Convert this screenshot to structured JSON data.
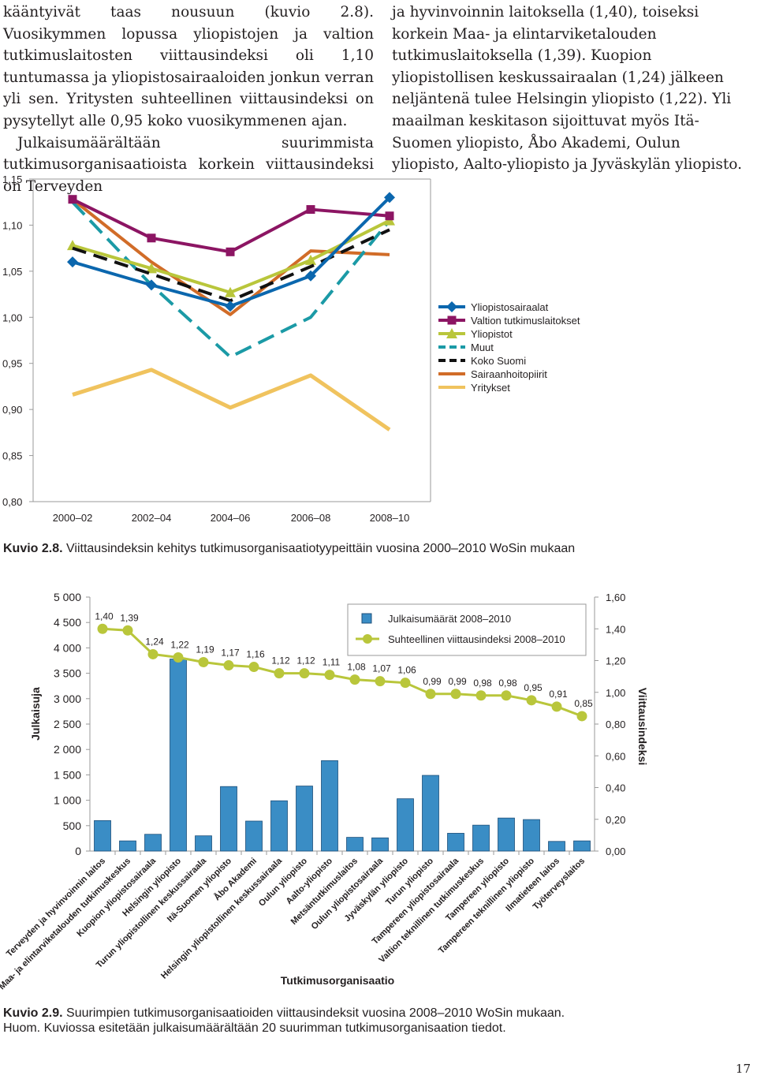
{
  "text": {
    "left_col": {
      "p1": "kääntyivät taas nousuun (kuvio 2.8). Vuosikymmen lopussa yliopistojen ja valtion tutkimuslaitosten viittausindeksi oli 1,10 tuntumassa ja yliopistosairaaloiden jonkun verran yli sen. Yritysten suhteellinen viittausindeksi on pysytellyt alle 0,95 koko vuosikymmenen ajan.",
      "p2": "Julkaisumäärältään suurimmista tutkimusorganisaatioista korkein viittausindeksi on Terveyden"
    },
    "right_col": {
      "p1": "ja hyvinvoinnin laitoksella (1,40), toiseksi korkein Maa- ja elintarviketalouden tutkimuslaitoksella (1,39). Kuopion yliopistollisen keskussairaalan (1,24) jälkeen neljäntenä tulee Helsingin yliopisto (1,22). Yli maailman keskitason sijoittuvat myös Itä-Suomen yliopisto, Åbo Akademi, Oulun yliopisto, Aalto-yliopisto ja Jyväskylän yliopisto."
    }
  },
  "caption1": {
    "label": "Kuvio 2.8.",
    "text": " Viittausindeksin kehitys tutkimusorganisaatiotyypeittäin vuosina 2000–2010 WoSin mukaan"
  },
  "caption2": {
    "label": "Kuvio 2.9.",
    "text": " Suurimpien tutkimusorganisaatioiden viittausindeksit vuosina 2008–2010 WoSin mukaan.",
    "note": "Huom. Kuviossa esitetään julkaisumäärältään 20 suurimman tutkimusorganisaation tiedot."
  },
  "page_number": "17",
  "chart_data": [
    {
      "type": "line",
      "title": "",
      "categories": [
        "2000–02",
        "2002–04",
        "2004–06",
        "2006–08",
        "2008–10"
      ],
      "ylim": [
        0.8,
        1.15
      ],
      "y_ticks": [
        "0,80",
        "0,85",
        "0,90",
        "0,95",
        "1,00",
        "1,05",
        "1,10",
        "1,15"
      ],
      "tick_values": [
        0.8,
        0.85,
        0.9,
        0.95,
        1.0,
        1.05,
        1.1,
        1.15
      ],
      "series": [
        {
          "name": "Yliopistosairaalat",
          "color": "#0b67ae",
          "marker": "diamond",
          "dash": "solid",
          "values": [
            1.06,
            1.035,
            1.012,
            1.045,
            1.13
          ]
        },
        {
          "name": "Valtion tutkimuslaitokset",
          "color": "#8c1563",
          "marker": "square",
          "dash": "solid",
          "values": [
            1.128,
            1.086,
            1.071,
            1.117,
            1.11
          ]
        },
        {
          "name": "Yliopistot",
          "color": "#b9c63b",
          "marker": "triangle",
          "dash": "solid",
          "values": [
            1.078,
            1.053,
            1.027,
            1.062,
            1.105
          ]
        },
        {
          "name": "Muut",
          "color": "#1b9aa6",
          "marker": "none",
          "dash": "dashed",
          "values": [
            1.125,
            1.035,
            0.957,
            1.0,
            1.105
          ]
        },
        {
          "name": "Koko Suomi",
          "color": "#111111",
          "marker": "none",
          "dash": "dashed",
          "values": [
            1.075,
            1.047,
            1.018,
            1.055,
            1.095
          ]
        },
        {
          "name": "Sairaanhoitopiirit",
          "color": "#d16c28",
          "marker": "none",
          "dash": "solid",
          "values": [
            1.128,
            1.06,
            1.003,
            1.072,
            1.068
          ]
        },
        {
          "name": "Yritykset",
          "color": "#f0c35e",
          "marker": "none",
          "dash": "solid",
          "values": [
            0.916,
            0.943,
            0.902,
            0.937,
            0.878
          ]
        }
      ]
    },
    {
      "type": "bar",
      "title": "",
      "xlabel": "Tutkimusorganisaatio",
      "ylabel": "Julkaisuja",
      "y2label": "Viittausindeksi",
      "ylim": [
        0,
        5000
      ],
      "y2lim": [
        0,
        1.6
      ],
      "y_ticks": [
        "0",
        "500",
        "1 000",
        "1 500",
        "2 000",
        "2 500",
        "3 000",
        "3 500",
        "4 000",
        "4 500",
        "5 000"
      ],
      "y2_ticks": [
        "0,00",
        "0,20",
        "0,40",
        "0,60",
        "0,80",
        "1,00",
        "1,20",
        "1,40",
        "1,60"
      ],
      "legend": {
        "bars": "Julkaisumäärät 2008–2010",
        "line": "Suhteellinen viittausindeksi 2008–2010"
      },
      "categories": [
        "Terveyden ja hyvinvoinnin laitos",
        "Maa- ja elintarviketalouden tutkimuskeskus",
        "Kuopion yliopistosairaala",
        "Helsingin yliopisto",
        "Turun yliopistollinen keskussairaala",
        "Itä-Suomen yliopisto",
        "Åbo Akademi",
        "Helsingin yliopistollinen keskussairaala",
        "Oulun yliopisto",
        "Aalto-yliopisto",
        "Metsäntutkimuslaitos",
        "Oulun yliopistosairaala",
        "Jyväskylän yliopisto",
        "Turun yliopisto",
        "Tampereen yliopistosairaala",
        "Valtion teknillinen tutkimuskeskus",
        "Tampereen yliopisto",
        "Tampereen teknillinen yliopisto",
        "Ilmatieteen laitos",
        "Työterveyslaitos"
      ],
      "bar_values": [
        600,
        200,
        330,
        3780,
        300,
        1270,
        590,
        990,
        1280,
        1780,
        270,
        260,
        1030,
        1490,
        350,
        510,
        650,
        620,
        190,
        200
      ],
      "line_values": [
        1.4,
        1.39,
        1.24,
        1.22,
        1.19,
        1.17,
        1.16,
        1.12,
        1.12,
        1.11,
        1.08,
        1.07,
        1.06,
        0.99,
        0.99,
        0.98,
        0.98,
        0.95,
        0.91,
        0.85
      ],
      "line_labels": [
        "1,40",
        "1,39",
        "1,24",
        "1,22",
        "1,19",
        "1,17",
        "1,16",
        "1,12",
        "1,12",
        "1,11",
        "1,08",
        "1,07",
        "1,06",
        "0,99",
        "0,99",
        "0,98",
        "0,98",
        "0,95",
        "0,91",
        "0,85"
      ],
      "bar_color": "#3a8dc5",
      "line_color": "#b9c63b"
    }
  ]
}
